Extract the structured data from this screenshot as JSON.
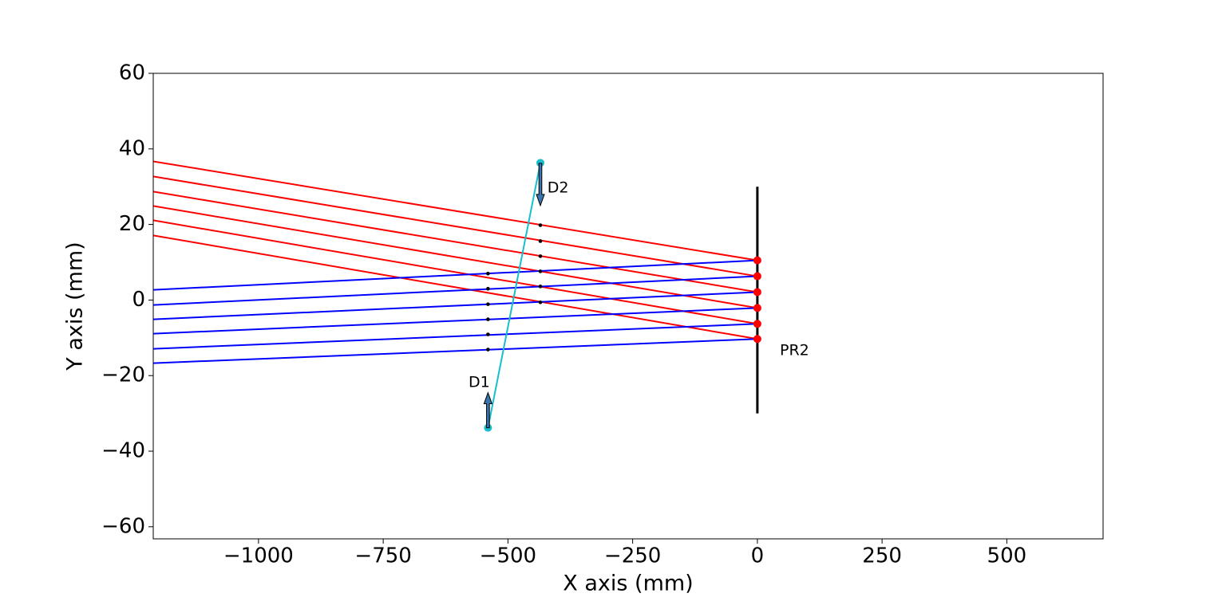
{
  "chart_data": {
    "type": "line",
    "xlabel": "X axis (mm)",
    "ylabel": "Y axis (mm)",
    "xlim": [
      -1211,
      693
    ],
    "ylim": [
      -63.2,
      60
    ],
    "xticks": [
      {
        "value": -1000,
        "label": "−1000"
      },
      {
        "value": -750,
        "label": "−750"
      },
      {
        "value": -500,
        "label": "−500"
      },
      {
        "value": -250,
        "label": "−250"
      },
      0,
      250,
      500
    ],
    "yticks": [
      {
        "value": -60,
        "label": "−60"
      },
      {
        "value": -40,
        "label": "−40"
      },
      {
        "value": -20,
        "label": "−20"
      },
      0,
      20,
      40,
      60
    ],
    "series": [
      {
        "color": "red",
        "linestyle": "-",
        "x": [
          -1211,
          0
        ],
        "values": [
          36.7,
          10.5
        ]
      },
      {
        "color": "red",
        "linestyle": "-",
        "x": [
          -1211,
          0
        ],
        "values": [
          32.7,
          6.3
        ]
      },
      {
        "color": "red",
        "linestyle": "-",
        "x": [
          -1211,
          0
        ],
        "values": [
          28.7,
          2.1
        ]
      },
      {
        "color": "red",
        "linestyle": "-",
        "x": [
          -1211,
          0
        ],
        "values": [
          24.9,
          -2.1
        ]
      },
      {
        "color": "red",
        "linestyle": "-",
        "x": [
          -1211,
          0
        ],
        "values": [
          21.1,
          -6.3
        ]
      },
      {
        "color": "red",
        "linestyle": "-",
        "x": [
          -1211,
          0
        ],
        "values": [
          17.1,
          -10.3
        ]
      },
      {
        "color": "blue",
        "linestyle": "-",
        "x": [
          -1211,
          0
        ],
        "values": [
          2.7,
          10.5
        ]
      },
      {
        "color": "blue",
        "linestyle": "-",
        "x": [
          -1211,
          0
        ],
        "values": [
          -1.3,
          6.3
        ]
      },
      {
        "color": "blue",
        "linestyle": "-",
        "x": [
          -1211,
          0
        ],
        "values": [
          -5.1,
          2.1
        ]
      },
      {
        "color": "blue",
        "linestyle": "-",
        "x": [
          -1211,
          0
        ],
        "values": [
          -8.9,
          -2.1
        ]
      },
      {
        "color": "blue",
        "linestyle": "-",
        "x": [
          -1211,
          0
        ],
        "values": [
          -12.9,
          -6.3
        ]
      },
      {
        "color": "blue",
        "linestyle": "-",
        "x": [
          -1211,
          0
        ],
        "values": [
          -16.7,
          -10.3
        ]
      },
      {
        "color": "black",
        "linestyle": "-",
        "x": [
          0,
          0
        ],
        "values": [
          -30,
          30
        ]
      },
      {
        "color": "#17becf",
        "linestyle": "-",
        "marker": "o",
        "x": [
          -540,
          -435
        ],
        "values": [
          -33.8,
          36.3
        ]
      },
      {
        "color": "red",
        "linestyle": "none",
        "marker": "o",
        "x": [
          0,
          0,
          0,
          0,
          0,
          0
        ],
        "values": [
          10.5,
          6.3,
          2.1,
          -2.1,
          -6.3,
          -10.3
        ]
      },
      {
        "color": "black",
        "linestyle": "none",
        "marker": ".",
        "x": [
          -435,
          -435,
          -435,
          -435,
          -435,
          -435
        ],
        "values": [
          19.8,
          15.6,
          11.6,
          7.6,
          3.6,
          -0.6
        ]
      },
      {
        "color": "black",
        "linestyle": "none",
        "marker": ".",
        "x": [
          -540,
          -540,
          -540,
          -540,
          -540,
          -540
        ],
        "values": [
          7.0,
          3.0,
          -1.1,
          -5.1,
          -9.1,
          -13.1
        ]
      }
    ],
    "arrows": [
      {
        "x": -435,
        "y": 36.2,
        "dx": 0,
        "dy": -11.2,
        "color": "#3b75af"
      },
      {
        "x": -540,
        "y": -33.8,
        "dx": 0,
        "dy": 9.3,
        "color": "#3b75af"
      }
    ],
    "annotations": [
      {
        "text": "D2",
        "x": -421,
        "y": 29.6
      },
      {
        "text": "D1",
        "x": -579,
        "y": -21.8
      },
      {
        "text": "PR2",
        "x": 45,
        "y": -13.4
      }
    ]
  }
}
